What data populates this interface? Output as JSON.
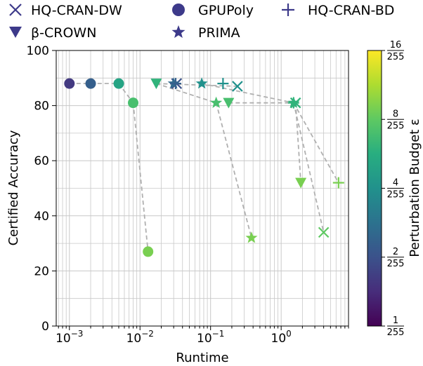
{
  "chart_data": {
    "type": "scatter",
    "xlabel": "Runtime",
    "ylabel": "Certified Accuracy",
    "xscale": "log",
    "xlim": [
      0.00065,
      9
    ],
    "ylim": [
      0,
      100
    ],
    "x_ticks": [
      "10^-3",
      "10^-2",
      "10^-1",
      "10^0"
    ],
    "y_ticks": [
      "0",
      "20",
      "40",
      "60",
      "80",
      "100"
    ],
    "grid": true,
    "legend": {
      "placement": "top",
      "columns": 3
    },
    "colorbar": {
      "label": "Perturbation Budget ε",
      "colormap": "viridis",
      "scale": "log2",
      "ticks": [
        {
          "num": "1",
          "den": "255",
          "value": 1
        },
        {
          "num": "2",
          "den": "255",
          "value": 2
        },
        {
          "num": "4",
          "den": "255",
          "value": 4
        },
        {
          "num": "8",
          "den": "255",
          "value": 8
        },
        {
          "num": "16",
          "den": "255",
          "value": 16
        }
      ]
    },
    "series": [
      {
        "name": "HQ-CRAN-DW",
        "marker": "x",
        "points": [
          {
            "x": 0.033,
            "y": 88,
            "eps": 2
          },
          {
            "x": 0.24,
            "y": 87,
            "eps": 4
          },
          {
            "x": 1.6,
            "y": 81,
            "eps": 6
          },
          {
            "x": 4.0,
            "y": 34,
            "eps": 8
          }
        ]
      },
      {
        "name": "β-CROWN",
        "marker": "triangle-down",
        "points": [
          {
            "x": 0.017,
            "y": 88,
            "eps": 6
          },
          {
            "x": 0.18,
            "y": 81,
            "eps": 7
          },
          {
            "x": 1.9,
            "y": 52,
            "eps": 9
          }
        ]
      },
      {
        "name": "GPUPoly",
        "marker": "circle",
        "points": [
          {
            "x": 0.001,
            "y": 88,
            "eps": 1.6
          },
          {
            "x": 0.002,
            "y": 88,
            "eps": 2.3
          },
          {
            "x": 0.005,
            "y": 88,
            "eps": 5
          },
          {
            "x": 0.008,
            "y": 81,
            "eps": 7
          },
          {
            "x": 0.013,
            "y": 27,
            "eps": 9
          }
        ]
      },
      {
        "name": "PRIMA",
        "marker": "star",
        "points": [
          {
            "x": 0.03,
            "y": 88,
            "eps": 2.6
          },
          {
            "x": 0.075,
            "y": 88,
            "eps": 4
          },
          {
            "x": 0.12,
            "y": 81,
            "eps": 7
          },
          {
            "x": 1.5,
            "y": 81,
            "eps": 6
          },
          {
            "x": 0.38,
            "y": 32,
            "eps": 9
          }
        ]
      },
      {
        "name": "HQ-CRAN-BD",
        "marker": "plus",
        "points": [
          {
            "x": 0.032,
            "y": 88,
            "eps": 2.3
          },
          {
            "x": 0.15,
            "y": 88,
            "eps": 4
          },
          {
            "x": 1.5,
            "y": 81,
            "eps": 6
          },
          {
            "x": 6.5,
            "y": 52,
            "eps": 9
          }
        ]
      }
    ],
    "connections": [
      {
        "from": [
          0.001,
          88
        ],
        "to": [
          0.005,
          88
        ]
      },
      {
        "from": [
          0.005,
          88
        ],
        "to": [
          0.008,
          81
        ]
      },
      {
        "from": [
          0.008,
          81
        ],
        "to": [
          0.013,
          27
        ]
      },
      {
        "from": [
          0.017,
          88
        ],
        "to": [
          0.24,
          87
        ]
      },
      {
        "from": [
          0.017,
          88
        ],
        "to": [
          0.12,
          81
        ]
      },
      {
        "from": [
          0.075,
          88
        ],
        "to": [
          1.5,
          81
        ]
      },
      {
        "from": [
          0.12,
          81
        ],
        "to": [
          0.38,
          32
        ]
      },
      {
        "from": [
          0.18,
          81
        ],
        "to": [
          1.6,
          81
        ]
      },
      {
        "from": [
          1.6,
          81
        ],
        "to": [
          1.9,
          52
        ]
      },
      {
        "from": [
          1.5,
          81
        ],
        "to": [
          4.0,
          34
        ]
      },
      {
        "from": [
          1.5,
          81
        ],
        "to": [
          6.5,
          52
        ]
      }
    ]
  },
  "colors": {
    "legend_marker": "#3d3a8a",
    "grid": "#c8c8c8",
    "connector": "#b0b0b0"
  }
}
